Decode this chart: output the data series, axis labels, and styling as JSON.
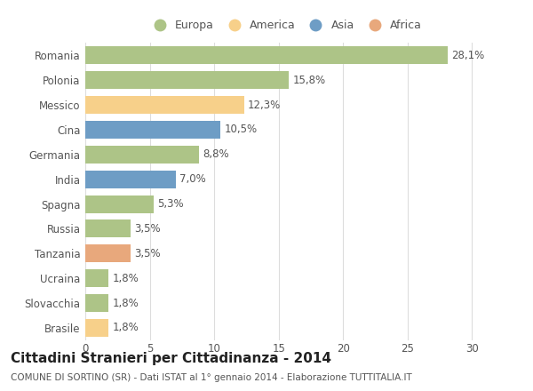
{
  "categories": [
    "Romania",
    "Polonia",
    "Messico",
    "Cina",
    "Germania",
    "India",
    "Spagna",
    "Russia",
    "Tanzania",
    "Ucraina",
    "Slovacchia",
    "Brasile"
  ],
  "values": [
    28.1,
    15.8,
    12.3,
    10.5,
    8.8,
    7.0,
    5.3,
    3.5,
    3.5,
    1.8,
    1.8,
    1.8
  ],
  "labels": [
    "28,1%",
    "15,8%",
    "12,3%",
    "10,5%",
    "8,8%",
    "7,0%",
    "5,3%",
    "3,5%",
    "3,5%",
    "1,8%",
    "1,8%",
    "1,8%"
  ],
  "continents": [
    "Europa",
    "Europa",
    "America",
    "Asia",
    "Europa",
    "Asia",
    "Europa",
    "Europa",
    "Africa",
    "Europa",
    "Europa",
    "America"
  ],
  "colors": {
    "Europa": "#adc487",
    "America": "#f7d08a",
    "Asia": "#6e9dc5",
    "Africa": "#e8a87c"
  },
  "legend_labels": [
    "Europa",
    "America",
    "Asia",
    "Africa"
  ],
  "legend_colors": [
    "#adc487",
    "#f7d08a",
    "#6e9dc5",
    "#e8a87c"
  ],
  "title": "Cittadini Stranieri per Cittadinanza - 2014",
  "subtitle": "COMUNE DI SORTINO (SR) - Dati ISTAT al 1° gennaio 2014 - Elaborazione TUTTITALIA.IT",
  "xlim": [
    0,
    31
  ],
  "xticks": [
    0,
    5,
    10,
    15,
    20,
    25,
    30
  ],
  "background_color": "#ffffff",
  "bar_height": 0.72,
  "grid_color": "#dddddd",
  "label_fontsize": 8.5,
  "tick_fontsize": 8.5,
  "title_fontsize": 11,
  "subtitle_fontsize": 7.5
}
